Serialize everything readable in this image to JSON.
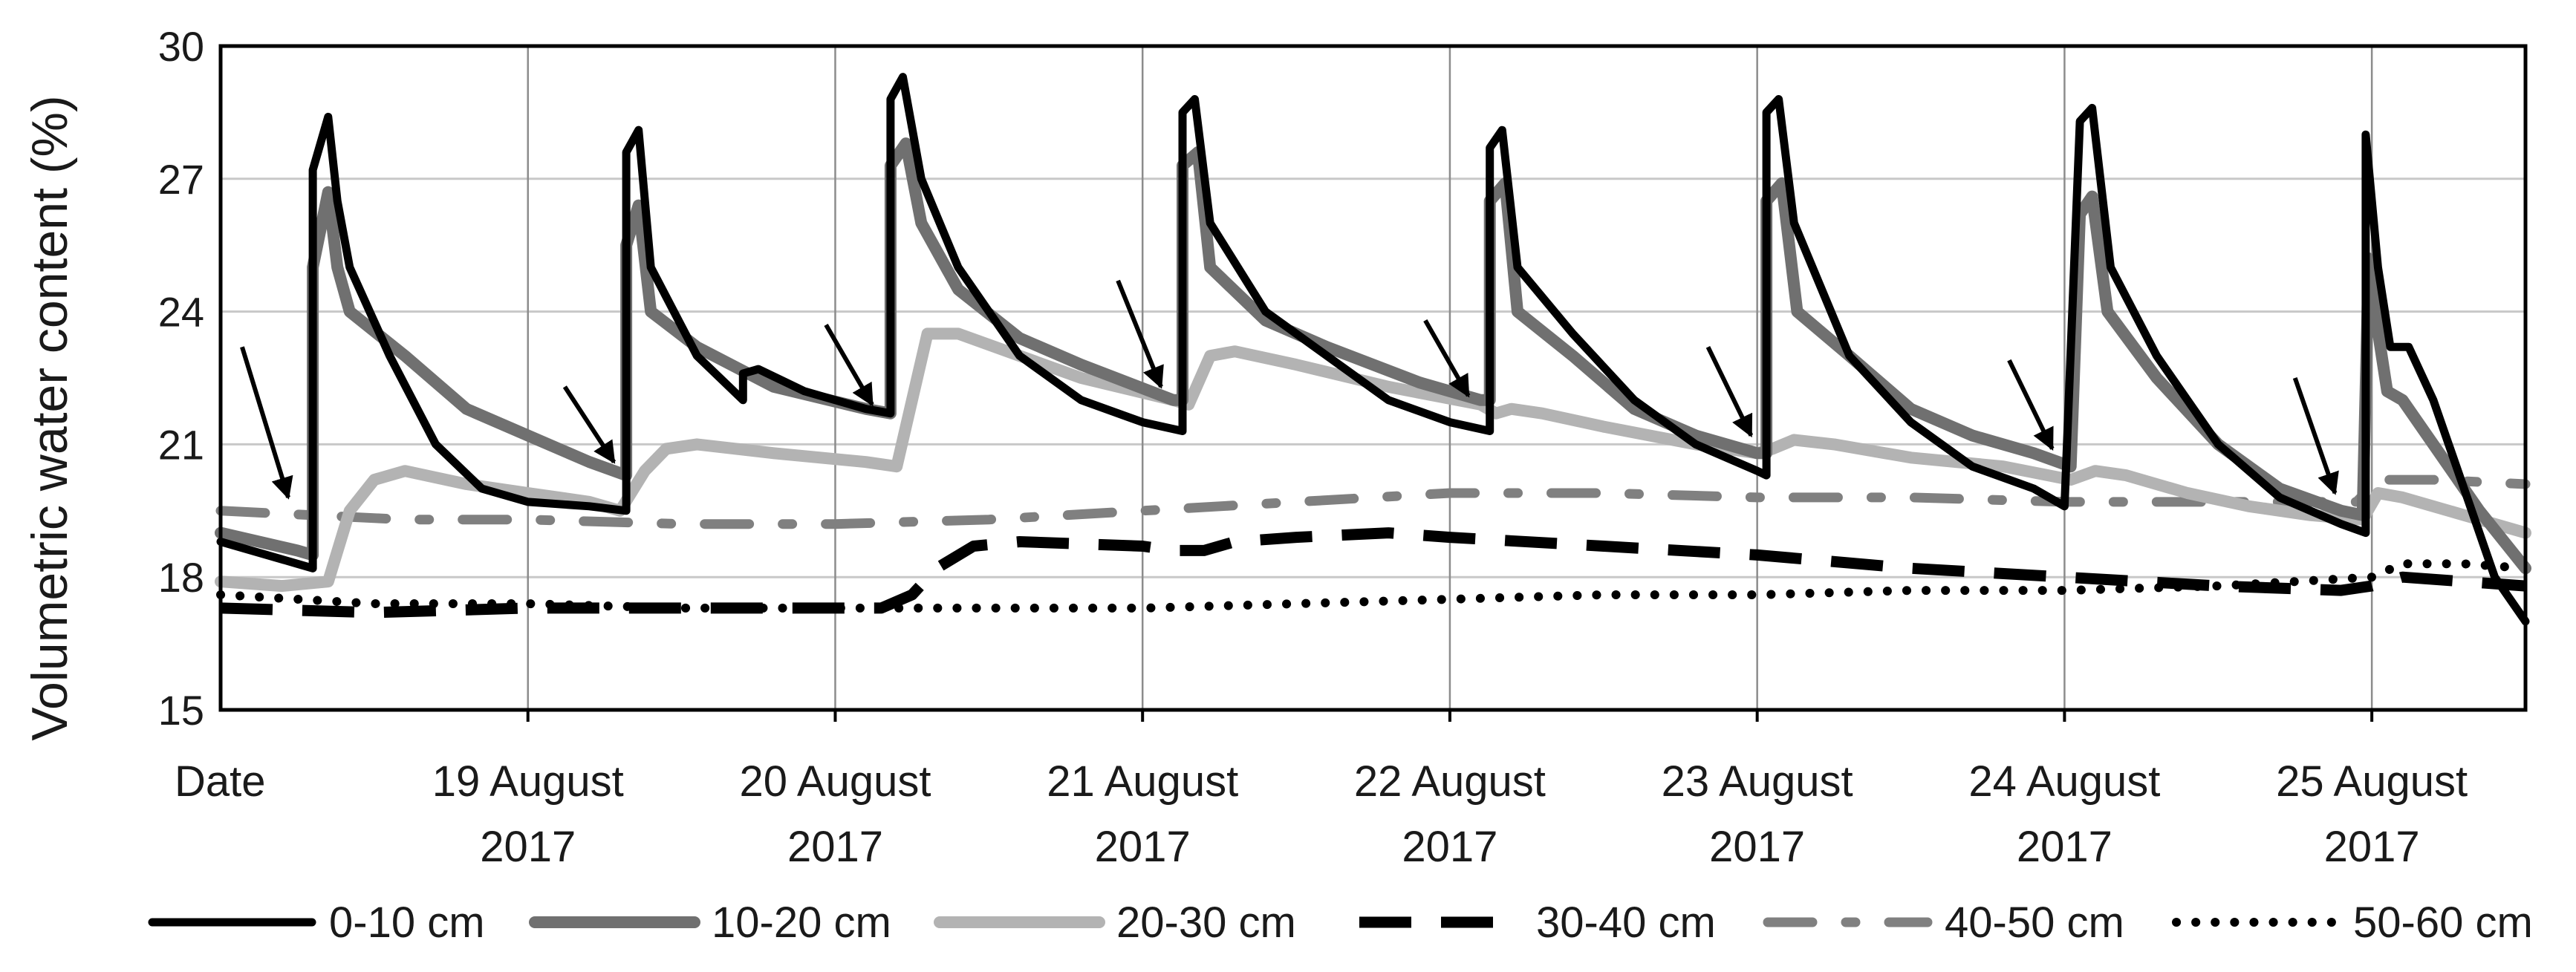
{
  "chart_data": {
    "type": "line",
    "xlabel": "Date",
    "ylabel": "Volumetric water content (%)",
    "ylim": [
      15,
      30
    ],
    "yticks": [
      15,
      18,
      21,
      24,
      27,
      30
    ],
    "xlim": [
      0,
      7.5
    ],
    "x_ticks": [
      {
        "x": 1,
        "line1": "19 August",
        "line2": "2017"
      },
      {
        "x": 2,
        "line1": "20 August",
        "line2": "2017"
      },
      {
        "x": 3,
        "line1": "21 August",
        "line2": "2017"
      },
      {
        "x": 4,
        "line1": "22 August",
        "line2": "2017"
      },
      {
        "x": 5,
        "line1": "23 August",
        "line2": "2017"
      },
      {
        "x": 6,
        "line1": "24 August",
        "line2": "2017"
      },
      {
        "x": 7,
        "line1": "25 August",
        "line2": "2017"
      }
    ],
    "grid": "horizontal and vertical",
    "legend_position": "bottom",
    "series": [
      {
        "name": "0-10 cm",
        "color": "#000000",
        "style": "solid",
        "points": [
          [
            0,
            18.8
          ],
          [
            0.25,
            18.3
          ],
          [
            0.3,
            18.2
          ],
          [
            0.3,
            27.2
          ],
          [
            0.35,
            28.4
          ],
          [
            0.38,
            26.5
          ],
          [
            0.42,
            25
          ],
          [
            0.55,
            23
          ],
          [
            0.7,
            21
          ],
          [
            0.85,
            20
          ],
          [
            1,
            19.7
          ],
          [
            1.2,
            19.6
          ],
          [
            1.32,
            19.5
          ],
          [
            1.32,
            27.6
          ],
          [
            1.36,
            28.1
          ],
          [
            1.4,
            25
          ],
          [
            1.55,
            23
          ],
          [
            1.7,
            22
          ],
          [
            1.7,
            22.6
          ],
          [
            1.75,
            22.7
          ],
          [
            1.9,
            22.2
          ],
          [
            2.1,
            21.8
          ],
          [
            2.18,
            21.7
          ],
          [
            2.18,
            28.8
          ],
          [
            2.22,
            29.3
          ],
          [
            2.28,
            27
          ],
          [
            2.4,
            25
          ],
          [
            2.6,
            23
          ],
          [
            2.8,
            22
          ],
          [
            3,
            21.5
          ],
          [
            3.13,
            21.3
          ],
          [
            3.13,
            28.5
          ],
          [
            3.17,
            28.8
          ],
          [
            3.22,
            26
          ],
          [
            3.4,
            24
          ],
          [
            3.6,
            23
          ],
          [
            3.8,
            22
          ],
          [
            4,
            21.5
          ],
          [
            4.13,
            21.3
          ],
          [
            4.13,
            27.7
          ],
          [
            4.17,
            28.1
          ],
          [
            4.22,
            25
          ],
          [
            4.4,
            23.5
          ],
          [
            4.6,
            22
          ],
          [
            4.8,
            21
          ],
          [
            5,
            20.4
          ],
          [
            5.03,
            20.3
          ],
          [
            5.03,
            28.5
          ],
          [
            5.07,
            28.8
          ],
          [
            5.12,
            26
          ],
          [
            5.3,
            23
          ],
          [
            5.5,
            21.5
          ],
          [
            5.7,
            20.5
          ],
          [
            5.9,
            20
          ],
          [
            6,
            19.6
          ],
          [
            6.05,
            28.3
          ],
          [
            6.09,
            28.6
          ],
          [
            6.15,
            25
          ],
          [
            6.3,
            23
          ],
          [
            6.5,
            21
          ],
          [
            6.7,
            19.8
          ],
          [
            6.9,
            19.2
          ],
          [
            6.98,
            19
          ],
          [
            6.98,
            28
          ],
          [
            7.02,
            25
          ],
          [
            7.06,
            23.2
          ],
          [
            7.12,
            23.2
          ],
          [
            7.2,
            22
          ],
          [
            7.3,
            20
          ],
          [
            7.4,
            18
          ],
          [
            7.5,
            17
          ]
        ]
      },
      {
        "name": "10-20 cm",
        "color": "#707070",
        "style": "solid",
        "points": [
          [
            0,
            19
          ],
          [
            0.25,
            18.6
          ],
          [
            0.3,
            18.5
          ],
          [
            0.3,
            25
          ],
          [
            0.35,
            26.7
          ],
          [
            0.38,
            25
          ],
          [
            0.42,
            24
          ],
          [
            0.6,
            23
          ],
          [
            0.8,
            21.8
          ],
          [
            1,
            21.2
          ],
          [
            1.2,
            20.6
          ],
          [
            1.32,
            20.3
          ],
          [
            1.32,
            25.5
          ],
          [
            1.36,
            26.4
          ],
          [
            1.4,
            24
          ],
          [
            1.55,
            23.2
          ],
          [
            1.8,
            22.3
          ],
          [
            2.1,
            21.8
          ],
          [
            2.18,
            21.7
          ],
          [
            2.18,
            27.3
          ],
          [
            2.23,
            27.8
          ],
          [
            2.28,
            26
          ],
          [
            2.4,
            24.5
          ],
          [
            2.6,
            23.4
          ],
          [
            2.8,
            22.8
          ],
          [
            3.1,
            22
          ],
          [
            3.13,
            22
          ],
          [
            3.13,
            27.3
          ],
          [
            3.18,
            27.6
          ],
          [
            3.22,
            25
          ],
          [
            3.4,
            23.8
          ],
          [
            3.6,
            23.2
          ],
          [
            3.9,
            22.4
          ],
          [
            4.1,
            22
          ],
          [
            4.13,
            22
          ],
          [
            4.13,
            26.5
          ],
          [
            4.18,
            26.9
          ],
          [
            4.22,
            24
          ],
          [
            4.4,
            23
          ],
          [
            4.6,
            21.8
          ],
          [
            4.8,
            21.2
          ],
          [
            5,
            20.8
          ],
          [
            5.03,
            20.8
          ],
          [
            5.03,
            26.5
          ],
          [
            5.08,
            26.9
          ],
          [
            5.13,
            24
          ],
          [
            5.3,
            23
          ],
          [
            5.5,
            21.8
          ],
          [
            5.7,
            21.2
          ],
          [
            5.9,
            20.8
          ],
          [
            6.02,
            20.5
          ],
          [
            6.05,
            26.2
          ],
          [
            6.09,
            26.6
          ],
          [
            6.14,
            24
          ],
          [
            6.3,
            22.5
          ],
          [
            6.5,
            21
          ],
          [
            6.7,
            20
          ],
          [
            6.9,
            19.5
          ],
          [
            6.97,
            19.4
          ],
          [
            6.99,
            25.2
          ],
          [
            7.01,
            24
          ],
          [
            7.05,
            22.2
          ],
          [
            7.1,
            22
          ],
          [
            7.2,
            21
          ],
          [
            7.35,
            19.5
          ],
          [
            7.5,
            18.2
          ]
        ]
      },
      {
        "name": "20-30 cm",
        "color": "#b3b3b3",
        "style": "solid",
        "points": [
          [
            0,
            17.9
          ],
          [
            0.2,
            17.8
          ],
          [
            0.35,
            17.9
          ],
          [
            0.42,
            19.5
          ],
          [
            0.5,
            20.2
          ],
          [
            0.6,
            20.4
          ],
          [
            0.8,
            20.1
          ],
          [
            1,
            19.9
          ],
          [
            1.2,
            19.7
          ],
          [
            1.3,
            19.5
          ],
          [
            1.38,
            20.4
          ],
          [
            1.45,
            20.9
          ],
          [
            1.55,
            21
          ],
          [
            1.8,
            20.8
          ],
          [
            2.1,
            20.6
          ],
          [
            2.2,
            20.5
          ],
          [
            2.25,
            22
          ],
          [
            2.3,
            23.5
          ],
          [
            2.4,
            23.5
          ],
          [
            2.6,
            23
          ],
          [
            2.8,
            22.5
          ],
          [
            3.1,
            22
          ],
          [
            3.15,
            21.9
          ],
          [
            3.22,
            23
          ],
          [
            3.3,
            23.1
          ],
          [
            3.5,
            22.8
          ],
          [
            3.8,
            22.3
          ],
          [
            4.1,
            21.9
          ],
          [
            4.15,
            21.7
          ],
          [
            4.2,
            21.8
          ],
          [
            4.3,
            21.7
          ],
          [
            4.5,
            21.4
          ],
          [
            4.8,
            21
          ],
          [
            5,
            20.8
          ],
          [
            5.05,
            20.9
          ],
          [
            5.12,
            21.1
          ],
          [
            5.25,
            21
          ],
          [
            5.5,
            20.7
          ],
          [
            5.8,
            20.5
          ],
          [
            6.02,
            20.2
          ],
          [
            6.1,
            20.4
          ],
          [
            6.2,
            20.3
          ],
          [
            6.4,
            19.9
          ],
          [
            6.6,
            19.6
          ],
          [
            6.8,
            19.4
          ],
          [
            6.97,
            19.3
          ],
          [
            7.02,
            19.9
          ],
          [
            7.1,
            19.8
          ],
          [
            7.3,
            19.4
          ],
          [
            7.5,
            19
          ]
        ]
      },
      {
        "name": "30-40 cm",
        "color": "#000000",
        "style": "dashed",
        "points": [
          [
            0,
            17.3
          ],
          [
            0.5,
            17.2
          ],
          [
            1,
            17.3
          ],
          [
            1.5,
            17.3
          ],
          [
            2,
            17.3
          ],
          [
            2.15,
            17.3
          ],
          [
            2.25,
            17.6
          ],
          [
            2.33,
            18.2
          ],
          [
            2.45,
            18.7
          ],
          [
            2.6,
            18.8
          ],
          [
            3,
            18.7
          ],
          [
            3.1,
            18.6
          ],
          [
            3.2,
            18.6
          ],
          [
            3.3,
            18.8
          ],
          [
            3.5,
            18.9
          ],
          [
            3.8,
            19
          ],
          [
            4,
            18.9
          ],
          [
            4.5,
            18.7
          ],
          [
            5,
            18.5
          ],
          [
            5.5,
            18.2
          ],
          [
            6,
            18
          ],
          [
            6.5,
            17.8
          ],
          [
            6.9,
            17.7
          ],
          [
            7,
            17.8
          ],
          [
            7.1,
            18
          ],
          [
            7.3,
            17.9
          ],
          [
            7.5,
            17.8
          ]
        ]
      },
      {
        "name": "40-50 cm",
        "color": "#808080",
        "style": "dashdot",
        "points": [
          [
            0,
            19.5
          ],
          [
            0.3,
            19.4
          ],
          [
            0.6,
            19.3
          ],
          [
            1,
            19.3
          ],
          [
            1.5,
            19.2
          ],
          [
            2,
            19.2
          ],
          [
            2.5,
            19.3
          ],
          [
            3,
            19.5
          ],
          [
            3.5,
            19.7
          ],
          [
            4,
            19.9
          ],
          [
            4.5,
            19.9
          ],
          [
            5,
            19.8
          ],
          [
            5.5,
            19.8
          ],
          [
            6,
            19.7
          ],
          [
            6.5,
            19.7
          ],
          [
            6.95,
            19.7
          ],
          [
            7.02,
            20.2
          ],
          [
            7.2,
            20.2
          ],
          [
            7.5,
            20.1
          ]
        ]
      },
      {
        "name": "50-60 cm",
        "color": "#000000",
        "style": "dotted",
        "points": [
          [
            0,
            17.6
          ],
          [
            0.5,
            17.4
          ],
          [
            1,
            17.4
          ],
          [
            1.5,
            17.3
          ],
          [
            2,
            17.3
          ],
          [
            2.5,
            17.3
          ],
          [
            3,
            17.3
          ],
          [
            3.5,
            17.4
          ],
          [
            4,
            17.5
          ],
          [
            4.5,
            17.6
          ],
          [
            5,
            17.6
          ],
          [
            5.5,
            17.7
          ],
          [
            6,
            17.7
          ],
          [
            6.5,
            17.8
          ],
          [
            7,
            18
          ],
          [
            7.1,
            18.3
          ],
          [
            7.3,
            18.3
          ],
          [
            7.5,
            18.2
          ]
        ]
      }
    ],
    "annotations": [
      {
        "type": "arrow",
        "from": [
          0.07,
          23.2
        ],
        "to": [
          0.22,
          19.8
        ]
      },
      {
        "type": "arrow",
        "from": [
          1.12,
          22.3
        ],
        "to": [
          1.28,
          20.6
        ]
      },
      {
        "type": "arrow",
        "from": [
          1.97,
          23.7
        ],
        "to": [
          2.12,
          21.9
        ]
      },
      {
        "type": "arrow",
        "from": [
          2.92,
          24.7
        ],
        "to": [
          3.06,
          22.3
        ]
      },
      {
        "type": "arrow",
        "from": [
          3.92,
          23.8
        ],
        "to": [
          4.06,
          22.1
        ]
      },
      {
        "type": "arrow",
        "from": [
          4.84,
          23.2
        ],
        "to": [
          4.98,
          21.2
        ]
      },
      {
        "type": "arrow",
        "from": [
          5.82,
          22.9
        ],
        "to": [
          5.96,
          20.9
        ]
      },
      {
        "type": "arrow",
        "from": [
          6.75,
          22.5
        ],
        "to": [
          6.88,
          19.9
        ]
      }
    ]
  }
}
